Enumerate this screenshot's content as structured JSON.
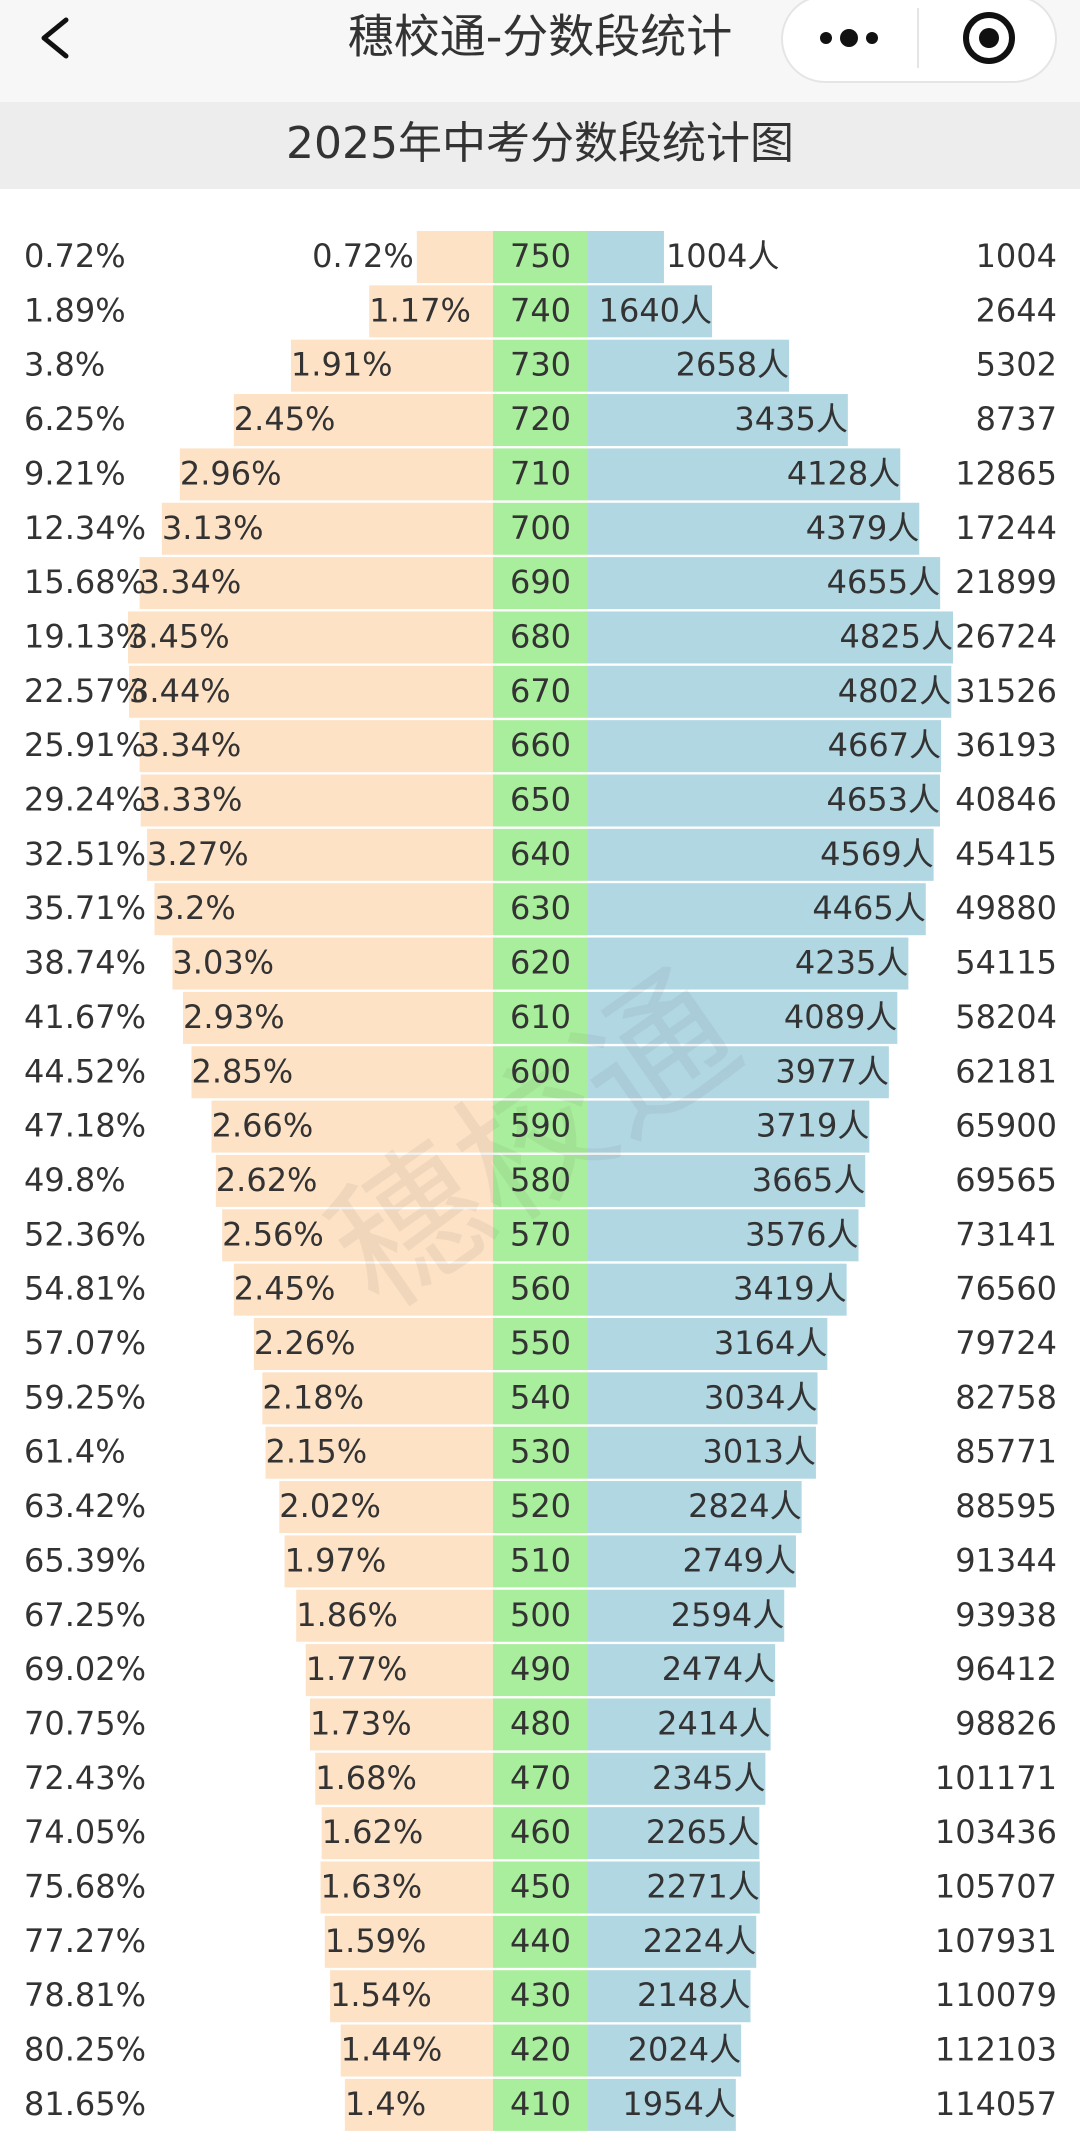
{
  "nav": {
    "title": "穗校通-分数段统计"
  },
  "watermark": "穗校通",
  "chart_data": {
    "type": "butterfly",
    "title": "2025年中考分数段统计图",
    "categories": [
      "750",
      "740",
      "730",
      "720",
      "710",
      "700",
      "690",
      "680",
      "670",
      "660",
      "650",
      "640",
      "630",
      "620",
      "610",
      "600",
      "590",
      "580",
      "570",
      "560",
      "550",
      "540",
      "530",
      "520",
      "510",
      "500",
      "490",
      "480",
      "470",
      "460",
      "450",
      "440",
      "430",
      "420",
      "410"
    ],
    "cumulative_percent_labels": [
      "0.72%",
      "1.89%",
      "3.8%",
      "6.25%",
      "9.21%",
      "12.34%",
      "15.68%",
      "19.13%",
      "22.57%",
      "25.91%",
      "29.24%",
      "32.51%",
      "35.71%",
      "38.74%",
      "41.67%",
      "44.52%",
      "47.18%",
      "49.8%",
      "52.36%",
      "54.81%",
      "57.07%",
      "59.25%",
      "61.4%",
      "63.42%",
      "65.39%",
      "67.25%",
      "69.02%",
      "70.75%",
      "72.43%",
      "74.05%",
      "75.68%",
      "77.27%",
      "78.81%",
      "80.25%",
      "81.65%"
    ],
    "cumulative_counts": [
      1004,
      2644,
      5302,
      8737,
      12865,
      17244,
      21899,
      26724,
      31526,
      36193,
      40846,
      45415,
      49880,
      54115,
      58204,
      62181,
      65900,
      69565,
      73141,
      76560,
      79724,
      82758,
      85771,
      88595,
      91344,
      93938,
      96412,
      98826,
      101171,
      103436,
      105707,
      107931,
      110079,
      112103,
      114057
    ],
    "series": [
      {
        "color": "#fde2c6",
        "values": [
          0.72,
          1.17,
          1.91,
          2.45,
          2.96,
          3.13,
          3.34,
          3.45,
          3.44,
          3.34,
          3.33,
          3.27,
          3.2,
          3.03,
          2.93,
          2.85,
          2.66,
          2.62,
          2.56,
          2.45,
          2.26,
          2.18,
          2.15,
          2.02,
          1.97,
          1.86,
          1.77,
          1.73,
          1.68,
          1.62,
          1.63,
          1.59,
          1.54,
          1.44,
          1.4
        ],
        "value_labels": [
          "0.72%",
          "1.17%",
          "1.91%",
          "2.45%",
          "2.96%",
          "3.13%",
          "3.34%",
          "3.45%",
          "3.44%",
          "3.34%",
          "3.33%",
          "3.27%",
          "3.2%",
          "3.03%",
          "2.93%",
          "2.85%",
          "2.66%",
          "2.62%",
          "2.56%",
          "2.45%",
          "2.26%",
          "2.18%",
          "2.15%",
          "2.02%",
          "1.97%",
          "1.86%",
          "1.77%",
          "1.73%",
          "1.68%",
          "1.62%",
          "1.63%",
          "1.59%",
          "1.54%",
          "1.44%",
          "1.4%"
        ]
      },
      {
        "color": "#b1d7e3",
        "values": [
          1004,
          1640,
          2658,
          3435,
          4128,
          4379,
          4655,
          4825,
          4802,
          4667,
          4653,
          4569,
          4465,
          4235,
          4089,
          3977,
          3719,
          3665,
          3576,
          3419,
          3164,
          3034,
          3013,
          2824,
          2749,
          2594,
          2474,
          2414,
          2345,
          2265,
          2271,
          2224,
          2148,
          2024,
          1954
        ],
        "value_labels": [
          "1004人",
          "1640人",
          "2658人",
          "3435人",
          "4128人",
          "4379人",
          "4655人",
          "4825人",
          "4802人",
          "4667人",
          "4653人",
          "4569人",
          "4465人",
          "4235人",
          "4089人",
          "3977人",
          "3719人",
          "3665人",
          "3576人",
          "3419人",
          "3164人",
          "3034人",
          "3013人",
          "2824人",
          "2749人",
          "2594人",
          "2474人",
          "2414人",
          "2345人",
          "2265人",
          "2271人",
          "2224人",
          "2148人",
          "2024人",
          "1954人"
        ]
      }
    ],
    "center_color": "#a9ee9c"
  }
}
